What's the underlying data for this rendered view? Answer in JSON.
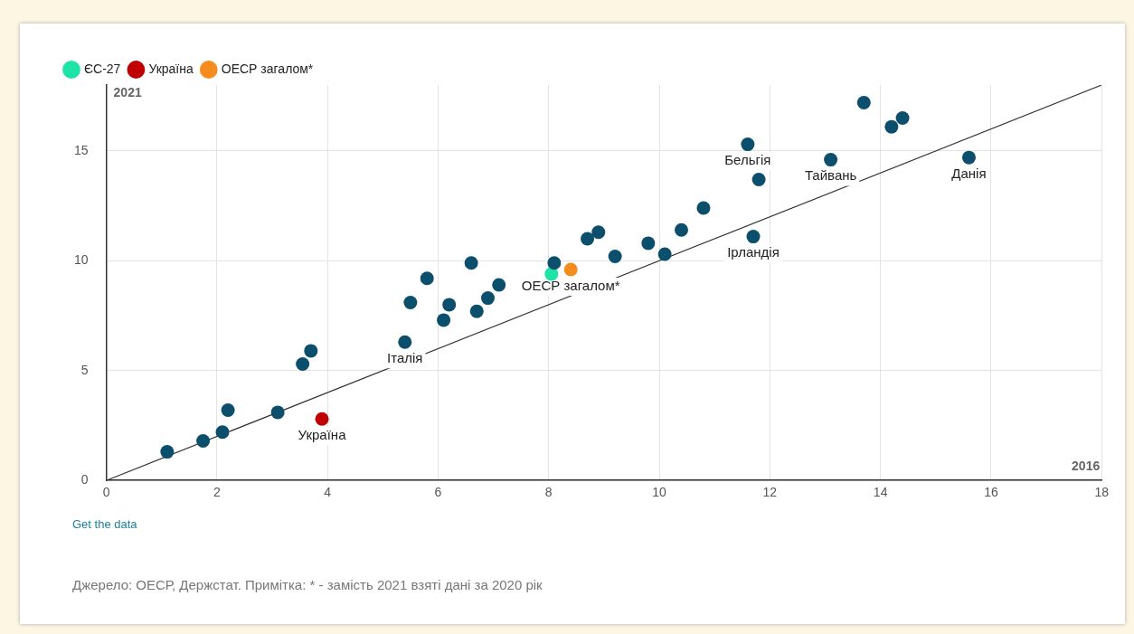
{
  "chart_data": {
    "type": "scatter",
    "xlabel": "2016",
    "ylabel": "2021",
    "xlim": [
      0,
      18
    ],
    "xticks": [
      0,
      2,
      4,
      6,
      8,
      10,
      12,
      14,
      16,
      18
    ],
    "ylim": [
      0,
      18
    ],
    "yticks": [
      0,
      5,
      10,
      15
    ],
    "grid": true,
    "legend": "top left",
    "marker": "circle",
    "series": [
      {
        "type": "line",
        "color": "#333333",
        "x": [
          0,
          18
        ],
        "values": [
          0,
          18
        ],
        "marker": "none"
      },
      {
        "color": "#0b4f6c",
        "x": [
          1.1,
          1.75,
          2.1,
          2.2,
          3.1,
          3.55,
          3.7,
          5.4,
          5.5,
          5.8,
          6.1,
          6.2,
          6.6,
          6.7,
          6.9,
          7.1,
          8.1,
          8.7,
          8.9,
          9.2,
          9.8,
          10.1,
          10.4,
          10.8,
          11.7,
          11.6,
          11.8,
          13.1,
          13.7,
          14.2,
          14.4,
          15.6
        ],
        "values": [
          1.3,
          1.8,
          2.2,
          3.2,
          3.1,
          5.3,
          5.9,
          6.3,
          8.1,
          9.2,
          7.3,
          8.0,
          9.9,
          7.7,
          8.3,
          8.9,
          9.9,
          11.0,
          11.3,
          10.2,
          10.8,
          10.3,
          11.4,
          12.4,
          11.1,
          15.3,
          13.7,
          14.6,
          17.2,
          16.1,
          16.5,
          14.7
        ]
      },
      {
        "name": "ЄС-27",
        "color": "#1ee3a6",
        "x": [
          8.05
        ],
        "values": [
          9.4
        ]
      },
      {
        "name": "Україна",
        "color": "#c00000",
        "x": [
          3.9
        ],
        "values": [
          2.8
        ]
      },
      {
        "name": "ОЕСР загалом*",
        "color": "#f68b1f",
        "x": [
          8.4
        ],
        "values": [
          9.6
        ]
      }
    ],
    "annotations": [
      {
        "text": "Україна",
        "x": 3.9,
        "y": 2.8
      },
      {
        "text": "Італія",
        "x": 5.4,
        "y": 6.3
      },
      {
        "text": "ОЕСР загалом*",
        "x": 8.4,
        "y": 9.6
      },
      {
        "text": "Ірландія",
        "x": 11.7,
        "y": 11.1
      },
      {
        "text": "Бельгія",
        "x": 11.6,
        "y": 15.3
      },
      {
        "text": "Тайвань",
        "x": 13.1,
        "y": 14.6
      },
      {
        "text": "Данія",
        "x": 15.6,
        "y": 14.7
      },
      "Get the data",
      "Джерело: ОЕСР, Держстат. Примітка: * - замість 2021 взяті дані за 2020 рік"
    ]
  }
}
